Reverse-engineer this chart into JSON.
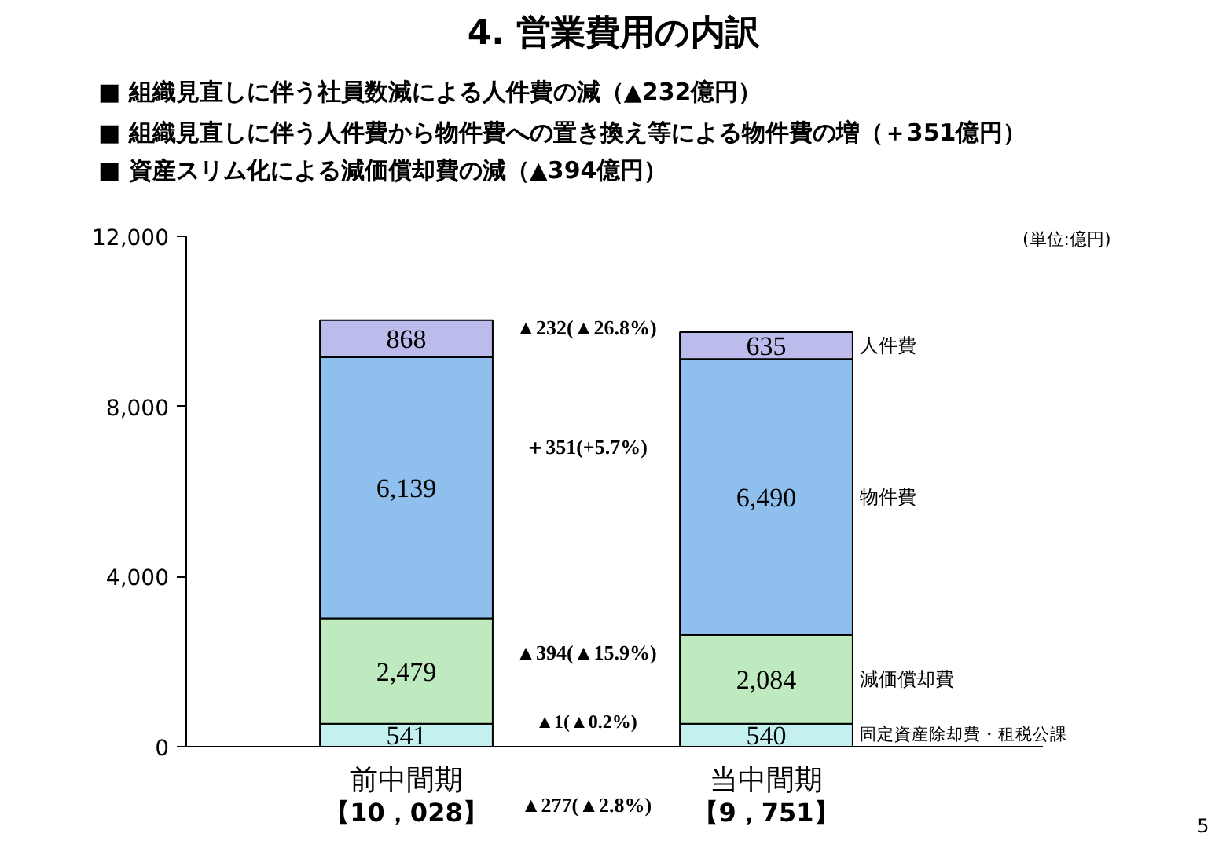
{
  "chart_data": {
    "type": "bar",
    "title": "4. 営業費用の内訳",
    "categories": [
      "前中間期",
      "当中間期"
    ],
    "stacked": true,
    "series": [
      {
        "name": "固定資産除却費・租税公課",
        "color": "#c4f0f0",
        "values": [
          541,
          540
        ],
        "value_labels": [
          "541",
          "540"
        ]
      },
      {
        "name": "減価償却費",
        "color": "#bfe9bf",
        "values": [
          2479,
          2084
        ],
        "value_labels": [
          "2,479",
          "2,084"
        ]
      },
      {
        "name": "物件費",
        "color": "#8fbfec",
        "values": [
          6139,
          6490
        ],
        "value_labels": [
          "6,139",
          "6,490"
        ]
      },
      {
        "name": "人件費",
        "color": "#bcbcec",
        "values": [
          868,
          635
        ],
        "value_labels": [
          "868",
          "635"
        ]
      }
    ],
    "ylim": [
      0,
      12000
    ],
    "yticks": [
      0,
      {
        "value": 4000,
        "label": "4,000"
      },
      {
        "value": 8000,
        "label": "8,000"
      },
      {
        "value": 12000,
        "label": "12,000"
      }
    ],
    "totals": [
      "【10，028】",
      "【9，751】"
    ],
    "grid": false,
    "legend": false,
    "annotations": [
      "■ 組織見直しに伴う社員数減による人件費の減（▲232億円）",
      "■ 組織見直しに伴う人件費から物件費への置き換え等による物件費の増（＋351億円）",
      "■ 資産スリム化による減価償却費の減（▲394億円）",
      "(単位:億円)",
      "▲232(▲26.8%)",
      "＋351(+5.7%)",
      "▲394(▲15.9%)",
      "▲1(▲0.2%)",
      "▲277(▲2.8%)",
      "5"
    ]
  }
}
